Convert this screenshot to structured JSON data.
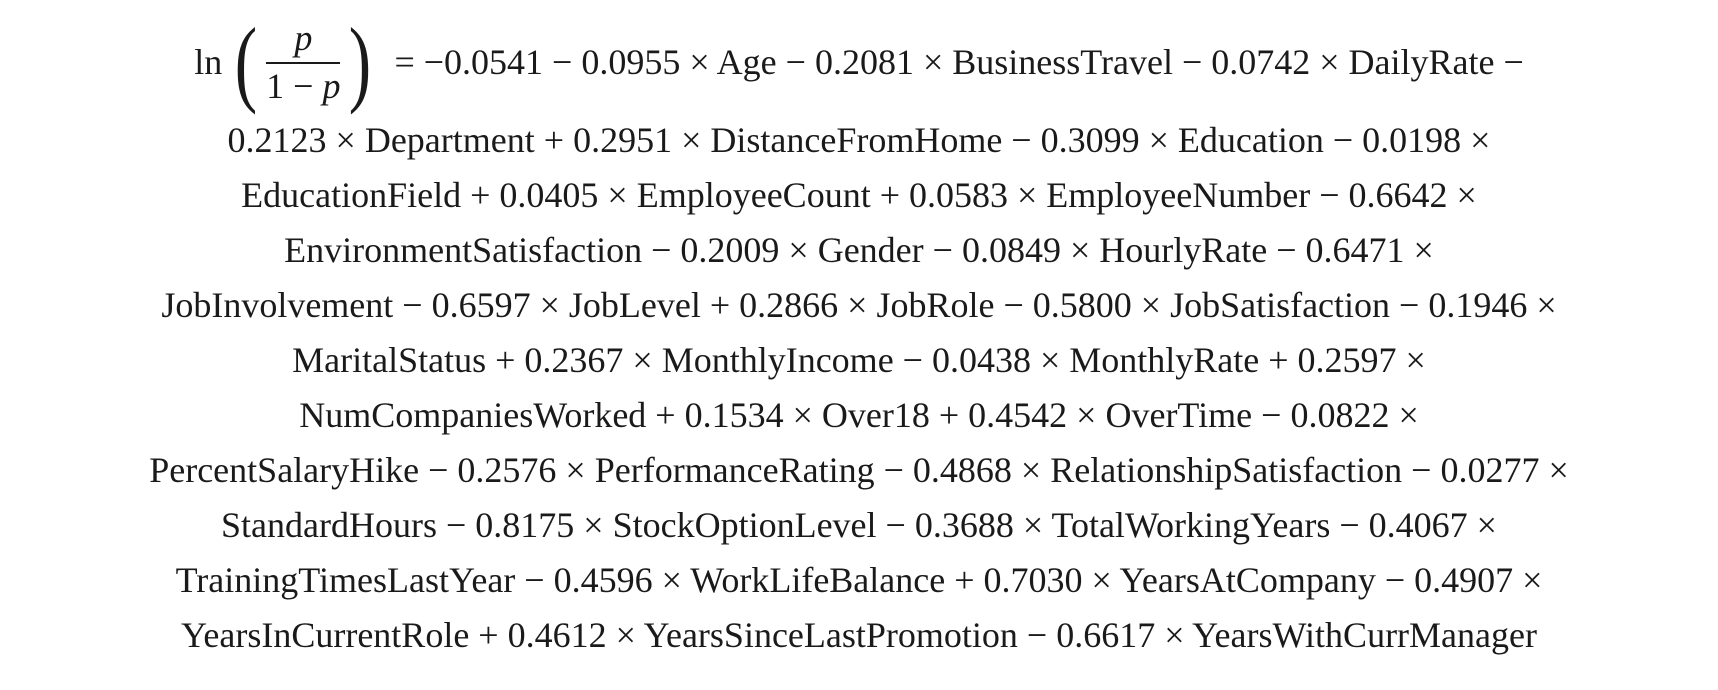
{
  "equation": {
    "lhs": {
      "func": "ln",
      "open_paren": "(",
      "close_paren": ")",
      "numerator": "p",
      "denominator_const": "1 − ",
      "denominator_var": "p"
    },
    "lines": [
      "= −0.0541 − 0.0955 × Age − 0.2081 × BusinessTravel − 0.0742 × DailyRate −",
      "0.2123 × Department + 0.2951 × DistanceFromHome − 0.3099 × Education − 0.0198 ×",
      "EducationField + 0.0405 × EmployeeCount + 0.0583 × EmployeeNumber − 0.6642 ×",
      "EnvironmentSatisfaction − 0.2009 × Gender − 0.0849 × HourlyRate − 0.6471 ×",
      "JobInvolvement − 0.6597 × JobLevel + 0.2866 × JobRole − 0.5800 × JobSatisfaction − 0.1946 ×",
      "MaritalStatus + 0.2367 × MonthlyIncome − 0.0438 × MonthlyRate + 0.2597 ×",
      "NumCompaniesWorked + 0.1534 × Over18 + 0.4542 × OverTime − 0.0822 ×",
      "PercentSalaryHike − 0.2576 × PerformanceRating − 0.4868 × RelationshipSatisfaction − 0.0277 ×",
      "StandardHours − 0.8175 × StockOptionLevel − 0.3688 × TotalWorkingYears − 0.4067 ×",
      "TrainingTimesLastYear − 0.4596 × WorkLifeBalance + 0.7030 × YearsAtCompany − 0.4907 ×",
      "YearsInCurrentRole + 0.4612 × YearsSinceLastPromotion − 0.6617 × YearsWithCurrManager"
    ]
  }
}
